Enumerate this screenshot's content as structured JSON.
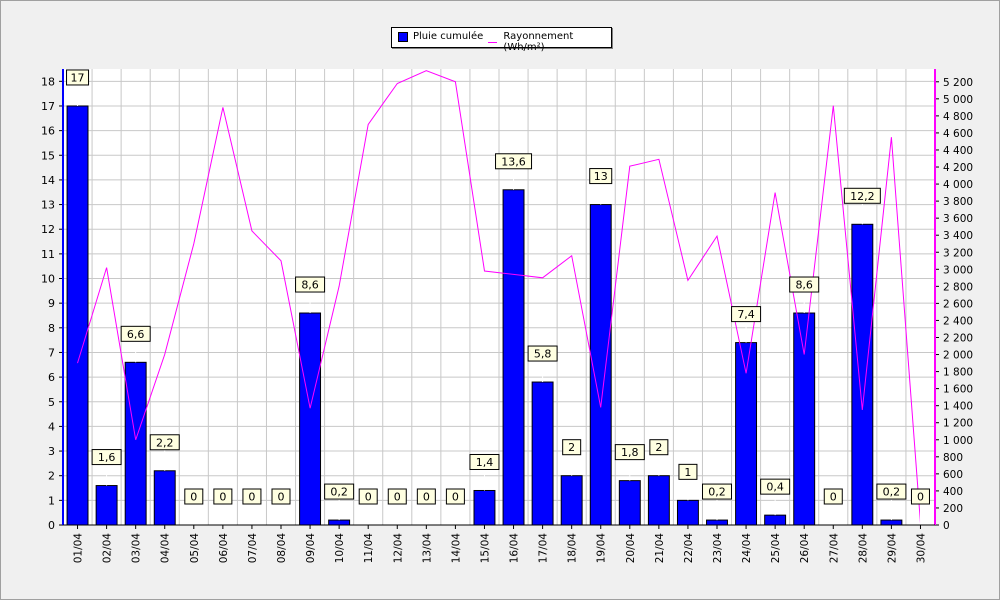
{
  "chart_data": {
    "type": "bar+line",
    "categories": [
      "01/04",
      "02/04",
      "03/04",
      "04/04",
      "05/04",
      "06/04",
      "07/04",
      "08/04",
      "09/04",
      "10/04",
      "11/04",
      "12/04",
      "13/04",
      "14/04",
      "15/04",
      "16/04",
      "17/04",
      "18/04",
      "19/04",
      "20/04",
      "21/04",
      "22/04",
      "23/04",
      "24/04",
      "25/04",
      "26/04",
      "27/04",
      "28/04",
      "29/04",
      "30/04"
    ],
    "series": [
      {
        "name": "Pluie cumulée",
        "type": "bar",
        "axis": "left",
        "color": "#0000ff",
        "values": [
          17,
          1.6,
          6.6,
          2.2,
          0,
          0,
          0,
          0,
          8.6,
          0.2,
          0,
          0,
          0,
          0,
          1.4,
          13.6,
          5.8,
          2,
          13,
          1.8,
          2,
          1,
          0.2,
          7.4,
          0.4,
          8.6,
          0,
          12.2,
          0.2,
          0
        ],
        "labels": [
          "17",
          "1,6",
          "6,6",
          "2,2",
          "0",
          "0",
          "0",
          "0",
          "8,6",
          "0,2",
          "0",
          "0",
          "0",
          "0",
          "1,4",
          "13,6",
          "5,8",
          "2",
          "13",
          "1,8",
          "2",
          "1",
          "0,2",
          "7,4",
          "0,4",
          "8,6",
          "0",
          "12,2",
          "0,2",
          "0"
        ]
      },
      {
        "name": "Rayonnement (Wh/m²)",
        "type": "line",
        "axis": "right",
        "color": "#ff00ff",
        "values": [
          1900,
          3020,
          1000,
          2000,
          3300,
          4900,
          3450,
          3100,
          1370,
          2800,
          4700,
          5180,
          5330,
          5200,
          2980,
          2940,
          2900,
          3160,
          1380,
          4210,
          4290,
          2870,
          3390,
          1780,
          3900,
          2000,
          4920,
          1350,
          4550,
          20
        ]
      }
    ],
    "y_left": {
      "min": 0,
      "max": 18.5,
      "ticks": [
        "0",
        "1",
        "2",
        "3",
        "4",
        "5",
        "6",
        "7",
        "8",
        "9",
        "10",
        "11",
        "12",
        "13",
        "14",
        "15",
        "16",
        "17",
        "18"
      ]
    },
    "y_right": {
      "min": 0,
      "max": 5350,
      "ticks": [
        "0",
        "200",
        "400",
        "600",
        "800",
        "1 000",
        "1 200",
        "1 400",
        "1 600",
        "1 800",
        "2 000",
        "2 200",
        "2 400",
        "2 600",
        "2 800",
        "3 000",
        "3 200",
        "3 400",
        "3 600",
        "3 800",
        "4 000",
        "4 200",
        "4 400",
        "4 600",
        "4 800",
        "5 000",
        "5 200"
      ]
    },
    "grid": true,
    "legend_position": "top-center"
  }
}
